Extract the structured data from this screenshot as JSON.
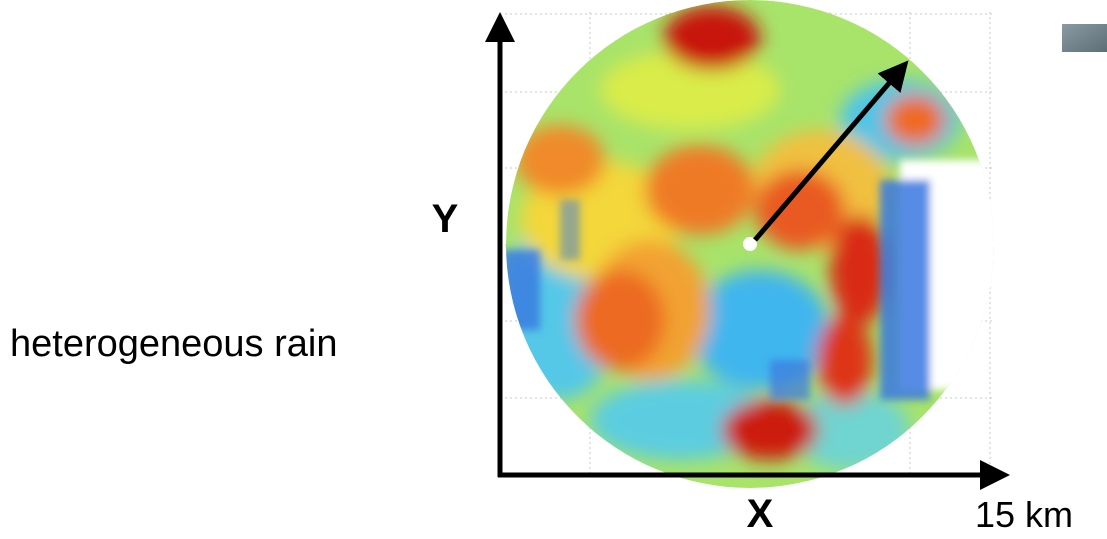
{
  "labels": {
    "y_axis": "Y",
    "x_axis": "X",
    "description": "heterogeneous rain",
    "scale": "15 km"
  }
}
